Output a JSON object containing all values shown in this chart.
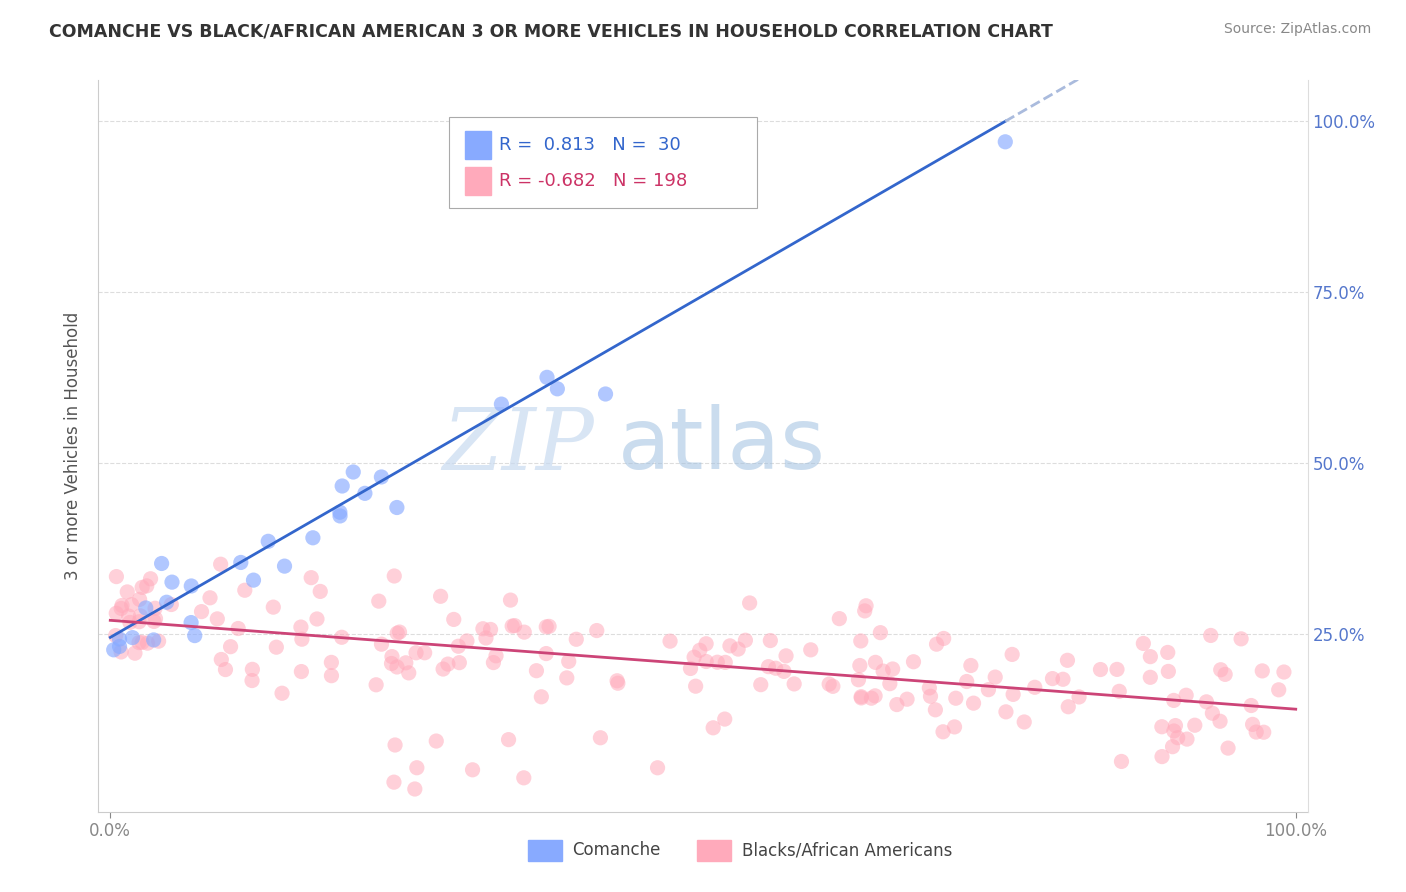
{
  "title": "COMANCHE VS BLACK/AFRICAN AMERICAN 3 OR MORE VEHICLES IN HOUSEHOLD CORRELATION CHART",
  "source": "Source: ZipAtlas.com",
  "ylabel": "3 or more Vehicles in Household",
  "ytick_labels": [
    "25.0%",
    "50.0%",
    "75.0%",
    "100.0%"
  ],
  "legend_entry1": {
    "color": "#88aaff",
    "R": "0.813",
    "N": "30",
    "label": "Comanche"
  },
  "legend_entry2": {
    "color": "#ffaabb",
    "R": "-0.682",
    "N": "198",
    "label": "Blacks/African Americans"
  },
  "comanche_color": "#88aaff",
  "baa_color": "#ffaabb",
  "trend_comanche_color": "#3366cc",
  "trend_baa_color": "#cc4477",
  "trend_dash_color": "#aabbdd",
  "watermark_zip": "ZIP",
  "watermark_atlas": "atlas",
  "bg_color": "#ffffff",
  "grid_color": "#dddddd",
  "comanche_R": 0.813,
  "comanche_N": 30,
  "baa_R": -0.682,
  "baa_N": 198,
  "seed": 42,
  "ytick_color": "#5577cc",
  "tick_color": "#888888",
  "ylabel_color": "#555555",
  "title_color": "#333333",
  "title_fontsize": 12.5,
  "source_color": "#888888",
  "legend_text_color_1": "#3366cc",
  "legend_text_color_2": "#cc3366"
}
